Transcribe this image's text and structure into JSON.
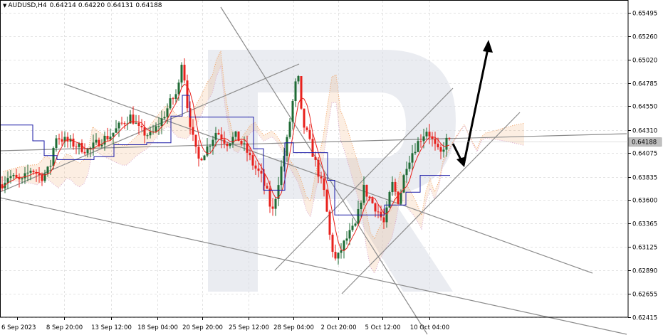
{
  "header": {
    "symbol": "AUDUSD,H4",
    "open": "0.64214",
    "high": "0.64220",
    "low": "0.64131",
    "close": "0.64188"
  },
  "chart_data": {
    "type": "candlestick",
    "symbol": "AUDUSD",
    "timeframe": "H4",
    "current_price": "0.64188",
    "y_ticks": [
      "0.65495",
      "0.65260",
      "0.65020",
      "0.64785",
      "0.64550",
      "0.64310",
      "0.64075",
      "0.63835",
      "0.63600",
      "0.63365",
      "0.63125",
      "0.62890",
      "0.62655",
      "0.62415"
    ],
    "x_ticks": [
      "6 Sep 2023",
      "8 Sep 20:00",
      "13 Sep 12:00",
      "18 Sep 04:00",
      "20 Sep 20:00",
      "25 Sep 12:00",
      "28 Sep 04:00",
      "2 Oct 20:00",
      "5 Oct 12:00",
      "10 Oct 04:00"
    ],
    "ylim": [
      0.62415,
      0.65495
    ],
    "grid": true,
    "colors": {
      "bull": "#1f6b35",
      "bear": "#e8211c",
      "tenkan": "#e8211c",
      "kijun": "#1a1aa6",
      "cloud": "#f0a060",
      "trendline": "#8c8c8c",
      "forecast": "#000000",
      "price_tag": "#c0c0c0",
      "watermark": "#d9dde6"
    }
  }
}
